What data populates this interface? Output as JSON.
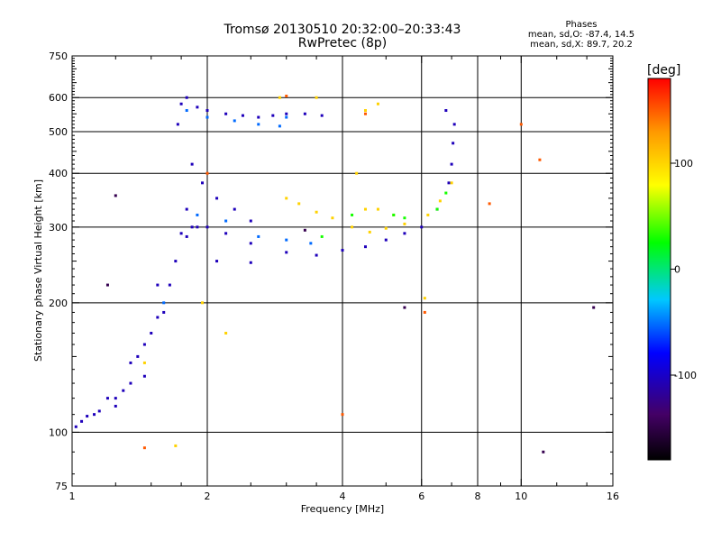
{
  "header": {
    "title_line1": "Tromsø 20130510 20:32:00–20:33:43",
    "title_line2": "RwPretec (8p)",
    "stats_title": "Phases",
    "stats_o": "mean, sd,O: -87.4, 14.5",
    "stats_x": "mean, sd,X:  89.7, 20.2"
  },
  "chart_data": {
    "type": "scatter",
    "xlabel": "Frequency [MHz]",
    "ylabel": "Stationary phase Virtual Height [km]",
    "x_scale": "log",
    "y_scale": "log",
    "xlim": [
      1,
      16
    ],
    "ylim": [
      75,
      750
    ],
    "x_ticks": [
      1,
      2,
      4,
      6,
      8,
      10,
      16
    ],
    "y_ticks": [
      75,
      100,
      200,
      300,
      400,
      500,
      600,
      750
    ],
    "x_minor_ticks": [
      1.25,
      1.5,
      1.75,
      2.5,
      3,
      3.5,
      5,
      7,
      9,
      12,
      14
    ],
    "x_grid": [
      2,
      4,
      6,
      8,
      10
    ],
    "y_grid": [
      100,
      200,
      300,
      400,
      500,
      600
    ],
    "colorbar": {
      "label": "[deg]",
      "range": [
        -180,
        180
      ],
      "ticks": [
        -100,
        0,
        100
      ],
      "colors": [
        "#000000",
        "#440066",
        "#0000ff",
        "#00c8ff",
        "#00ff00",
        "#ffff00",
        "#ff9900",
        "#ff0000"
      ]
    },
    "series": [
      {
        "color_value": -100,
        "points": [
          [
            1.02,
            103
          ],
          [
            1.05,
            106
          ],
          [
            1.08,
            109
          ],
          [
            1.12,
            110
          ],
          [
            1.15,
            112
          ],
          [
            1.2,
            120
          ],
          [
            1.25,
            115
          ],
          [
            1.3,
            125
          ],
          [
            1.35,
            145
          ],
          [
            1.4,
            150
          ],
          [
            1.45,
            160
          ],
          [
            1.5,
            170
          ],
          [
            1.55,
            185
          ],
          [
            1.6,
            190
          ],
          [
            1.65,
            220
          ],
          [
            1.7,
            250
          ],
          [
            1.75,
            290
          ],
          [
            1.8,
            330
          ],
          [
            1.85,
            300
          ],
          [
            1.9,
            300
          ],
          [
            2.0,
            300
          ],
          [
            2.2,
            290
          ],
          [
            2.5,
            275
          ],
          [
            3.0,
            262
          ],
          [
            3.5,
            258
          ],
          [
            4.0,
            265
          ],
          [
            4.5,
            270
          ],
          [
            5.0,
            280
          ],
          [
            5.5,
            290
          ],
          [
            6.0,
            300
          ],
          [
            6.5,
            330
          ],
          [
            6.9,
            380
          ],
          [
            7.0,
            420
          ],
          [
            7.05,
            470
          ],
          [
            7.1,
            520
          ],
          [
            6.8,
            560
          ],
          [
            1.72,
            520
          ],
          [
            1.75,
            580
          ],
          [
            1.8,
            600
          ],
          [
            1.9,
            570
          ],
          [
            2.0,
            560
          ],
          [
            2.2,
            550
          ],
          [
            2.4,
            545
          ],
          [
            2.6,
            540
          ],
          [
            2.8,
            545
          ],
          [
            3.0,
            550
          ],
          [
            3.3,
            550
          ],
          [
            3.6,
            545
          ],
          [
            1.85,
            420
          ],
          [
            1.95,
            380
          ],
          [
            2.1,
            350
          ],
          [
            2.3,
            330
          ],
          [
            2.5,
            310
          ],
          [
            1.8,
            285
          ],
          [
            2.1,
            250
          ],
          [
            2.5,
            248
          ],
          [
            1.55,
            220
          ],
          [
            1.45,
            135
          ],
          [
            1.35,
            130
          ],
          [
            1.25,
            120
          ]
        ]
      },
      {
        "color_value": -50,
        "points": [
          [
            1.8,
            560
          ],
          [
            2.0,
            540
          ],
          [
            2.3,
            530
          ],
          [
            2.6,
            520
          ],
          [
            2.9,
            515
          ],
          [
            3.0,
            540
          ],
          [
            1.9,
            320
          ],
          [
            2.2,
            310
          ],
          [
            2.6,
            285
          ],
          [
            3.0,
            280
          ],
          [
            3.4,
            275
          ],
          [
            1.6,
            200
          ]
        ]
      },
      {
        "color_value": 100,
        "points": [
          [
            3.0,
            350
          ],
          [
            3.2,
            340
          ],
          [
            3.5,
            325
          ],
          [
            3.8,
            315
          ],
          [
            4.2,
            300
          ],
          [
            4.6,
            292
          ],
          [
            5.0,
            298
          ],
          [
            5.5,
            305
          ],
          [
            6.2,
            320
          ],
          [
            6.6,
            345
          ],
          [
            7.0,
            380
          ],
          [
            4.5,
            330
          ],
          [
            4.8,
            330
          ],
          [
            5.2,
            320
          ],
          [
            4.3,
            400
          ],
          [
            4.5,
            560
          ],
          [
            4.8,
            580
          ],
          [
            3.5,
            600
          ],
          [
            2.9,
            600
          ],
          [
            1.95,
            200
          ],
          [
            2.2,
            170
          ],
          [
            1.7,
            93
          ],
          [
            1.45,
            145
          ],
          [
            6.1,
            205
          ]
        ]
      },
      {
        "color_value": 30,
        "points": [
          [
            5.2,
            320
          ],
          [
            5.5,
            315
          ],
          [
            6.5,
            330
          ],
          [
            6.8,
            360
          ],
          [
            4.2,
            320
          ],
          [
            3.6,
            285
          ]
        ]
      },
      {
        "color_value": 150,
        "points": [
          [
            10.0,
            520
          ],
          [
            11.0,
            430
          ],
          [
            8.5,
            340
          ],
          [
            6.1,
            190
          ],
          [
            4.0,
            110
          ],
          [
            2.0,
            400
          ],
          [
            1.45,
            92
          ],
          [
            4.5,
            550
          ],
          [
            3.0,
            605
          ]
        ]
      },
      {
        "color_value": -140,
        "points": [
          [
            14.5,
            195
          ],
          [
            11.2,
            90
          ],
          [
            5.5,
            195
          ],
          [
            3.3,
            295
          ],
          [
            1.25,
            355
          ],
          [
            1.2,
            220
          ]
        ]
      }
    ]
  }
}
